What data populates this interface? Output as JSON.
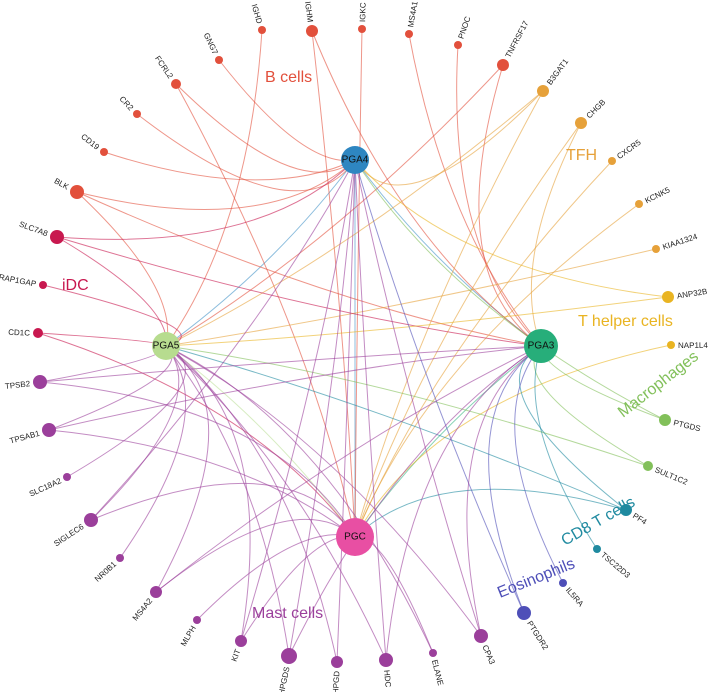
{
  "hubs": [
    {
      "id": "PGA4",
      "label": "PGA4",
      "color": "#2e86c1"
    },
    {
      "id": "PGA5",
      "label": "PGA5",
      "color": "#b7dc8f"
    },
    {
      "id": "PGA3",
      "label": "PGA3",
      "color": "#27ae7a"
    },
    {
      "id": "PGC",
      "label": "PGC",
      "color": "#e84fa3"
    }
  ],
  "groups": [
    {
      "id": "bcells",
      "label": "B cells",
      "color": "#e2503c"
    },
    {
      "id": "tfh",
      "label": "TFH",
      "color": "#e6a13a"
    },
    {
      "id": "idc",
      "label": "iDC",
      "color": "#c8184f"
    },
    {
      "id": "thelper",
      "label": "T helper cells",
      "color": "#e9b422"
    },
    {
      "id": "macro",
      "label": "Macrophages",
      "color": "#82c05a"
    },
    {
      "id": "cd8",
      "label": "CD8 T cells",
      "color": "#1f8aa0"
    },
    {
      "id": "eos",
      "label": "Eosinophils",
      "color": "#4e4fb8"
    },
    {
      "id": "mast",
      "label": "Mast cells",
      "color": "#9b3f9b"
    }
  ],
  "genes": [
    {
      "label": "IGHD",
      "group": "bcells",
      "size": 4,
      "edges": [
        "PGA5"
      ]
    },
    {
      "label": "IGHM",
      "group": "bcells",
      "size": 6,
      "edges": [
        "PGA3",
        "PGC"
      ]
    },
    {
      "label": "IGKC",
      "group": "bcells",
      "size": 4,
      "edges": [
        "PGC"
      ]
    },
    {
      "label": "MS4A1",
      "group": "bcells",
      "size": 4,
      "edges": [
        "PGA3"
      ]
    },
    {
      "label": "PNOC",
      "group": "bcells",
      "size": 4,
      "edges": [
        "PGA3"
      ]
    },
    {
      "label": "TNFRSF17",
      "group": "bcells",
      "size": 6,
      "edges": [
        "PGA3",
        "PGA5"
      ]
    },
    {
      "label": "GNG7",
      "group": "bcells",
      "size": 4,
      "edges": [
        "PGA4"
      ]
    },
    {
      "label": "FCRL2",
      "group": "bcells",
      "size": 5,
      "edges": [
        "PGA4",
        "PGC"
      ]
    },
    {
      "label": "CR2",
      "group": "bcells",
      "size": 4,
      "edges": [
        "PGA4"
      ]
    },
    {
      "label": "CD19",
      "group": "bcells",
      "size": 4,
      "edges": [
        "PGA4"
      ]
    },
    {
      "label": "BLK",
      "group": "bcells",
      "size": 7,
      "edges": [
        "PGA4",
        "PGA3",
        "PGA5"
      ]
    },
    {
      "label": "B3GAT1",
      "group": "tfh",
      "size": 6,
      "edges": [
        "PGA4",
        "PGA5",
        "PGC"
      ]
    },
    {
      "label": "CHGB",
      "group": "tfh",
      "size": 6,
      "edges": [
        "PGA3",
        "PGC"
      ]
    },
    {
      "label": "CXCR5",
      "group": "tfh",
      "size": 4,
      "edges": [
        "PGC"
      ]
    },
    {
      "label": "KCNK5",
      "group": "tfh",
      "size": 4,
      "edges": [
        "PGC"
      ]
    },
    {
      "label": "KIAA1324",
      "group": "tfh",
      "size": 4,
      "edges": [
        "PGA5"
      ]
    },
    {
      "label": "SLC7A8",
      "group": "idc",
      "size": 7,
      "edges": [
        "PGA4",
        "PGA3",
        "PGA5"
      ]
    },
    {
      "label": "RAP1GAP",
      "group": "idc",
      "size": 4,
      "edges": [
        "PGA5"
      ]
    },
    {
      "label": "CD1C",
      "group": "idc",
      "size": 5,
      "edges": [
        "PGA5",
        "PGC"
      ]
    },
    {
      "label": "ANP32B",
      "group": "thelper",
      "size": 6,
      "edges": [
        "PGA4",
        "PGA5"
      ]
    },
    {
      "label": "NAP1L4",
      "group": "thelper",
      "size": 4,
      "edges": [
        "PGC"
      ]
    },
    {
      "label": "PTGDS",
      "group": "macro",
      "size": 6,
      "edges": [
        "PGA3",
        "PGA4"
      ]
    },
    {
      "label": "SULT1C2",
      "group": "macro",
      "size": 5,
      "edges": [
        "PGA3",
        "PGA5"
      ]
    },
    {
      "label": "PF4",
      "group": "cd8",
      "size": 6,
      "edges": [
        "PGA3",
        "PGA5",
        "PGC"
      ]
    },
    {
      "label": "TSC22D3",
      "group": "cd8",
      "size": 4,
      "edges": [
        "PGA3"
      ]
    },
    {
      "label": "IL5RA",
      "group": "eos",
      "size": 4,
      "edges": [
        "PGA3"
      ]
    },
    {
      "label": "PTGDR2",
      "group": "eos",
      "size": 7,
      "edges": [
        "PGA3",
        "PGA4"
      ]
    },
    {
      "label": "TPSB2",
      "group": "mast",
      "size": 7,
      "edges": [
        "PGA5",
        "PGA3",
        "PGC"
      ]
    },
    {
      "label": "TPSAB1",
      "group": "mast",
      "size": 7,
      "edges": [
        "PGA5",
        "PGA3",
        "PGC"
      ]
    },
    {
      "label": "SLC18A2",
      "group": "mast",
      "size": 4,
      "edges": [
        "PGA5"
      ]
    },
    {
      "label": "SIGLEC6",
      "group": "mast",
      "size": 7,
      "edges": [
        "PGA4",
        "PGA5",
        "PGC"
      ]
    },
    {
      "label": "NR0B1",
      "group": "mast",
      "size": 4,
      "edges": [
        "PGA5"
      ]
    },
    {
      "label": "MS4A2",
      "group": "mast",
      "size": 6,
      "edges": [
        "PGA5",
        "PGA3",
        "PGC"
      ]
    },
    {
      "label": "MLPH",
      "group": "mast",
      "size": 4,
      "edges": [
        "PGC"
      ]
    },
    {
      "label": "KIT",
      "group": "mast",
      "size": 6,
      "edges": [
        "PGA4",
        "PGA5",
        "PGC"
      ]
    },
    {
      "label": "HPGDS",
      "group": "mast",
      "size": 8,
      "edges": [
        "PGA4",
        "PGA5",
        "PGA3"
      ]
    },
    {
      "label": "HPGD",
      "group": "mast",
      "size": 6,
      "edges": [
        "PGA4",
        "PGA5"
      ]
    },
    {
      "label": "HDC",
      "group": "mast",
      "size": 7,
      "edges": [
        "PGA4",
        "PGA3",
        "PGA5"
      ]
    },
    {
      "label": "ELANE",
      "group": "mast",
      "size": 4,
      "edges": [
        "PGA5",
        "PGC"
      ]
    },
    {
      "label": "CPA3",
      "group": "mast",
      "size": 7,
      "edges": [
        "PGA4",
        "PGA5",
        "PGA3"
      ]
    }
  ],
  "hub_edges": [
    [
      "PGA4",
      "PGC"
    ],
    [
      "PGA5",
      "PGC"
    ],
    [
      "PGA3",
      "PGC"
    ],
    [
      "PGA4",
      "PGA3"
    ],
    [
      "PGA4",
      "PGA5"
    ]
  ]
}
